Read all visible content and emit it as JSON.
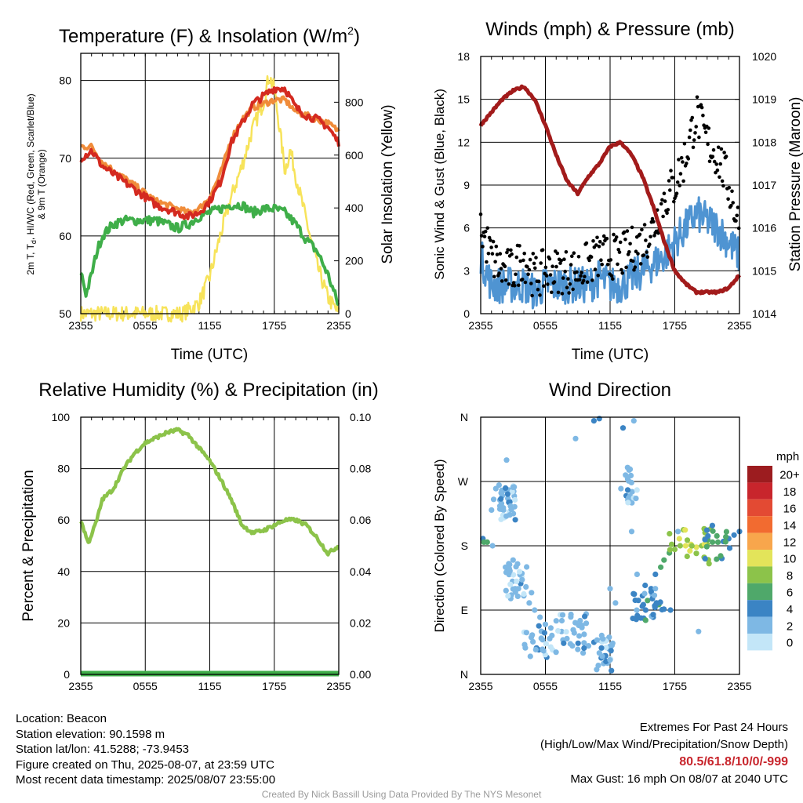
{
  "colors": {
    "red": "#d42a20",
    "orange": "#f08c3a",
    "green": "#3fae49",
    "yellow": "#f7e35a",
    "sonic": "#4f94d2",
    "gust": "#000000",
    "pressure": "#a21b1b",
    "rh": "#8cc34a",
    "precip": "#3fae49"
  },
  "charts": {
    "temp": {
      "title_main": "Temperature (F) & Insolation (W/m",
      "title_sup": "2",
      "title_end": ")",
      "ylabel_line1": "2m T, T",
      "ylabel_sub": "d",
      "ylabel_line1_end": ", HI/WC (Red, Green, Scarlet/Blue)",
      "ylabel_line2": "& 9m T (Orange)",
      "y2label": "Solar Insolation (Yellow)",
      "xlabel": "Time (UTC)"
    },
    "wind": {
      "title": "Winds (mph) & Pressure (mb)",
      "ylabel": "Sonic Wind & Gust (Blue, Black)",
      "y2label": "Station Pressure (Maroon)",
      "xlabel": "Time (UTC)"
    },
    "rh": {
      "title": "Relative Humidity (%) & Precipitation (in)",
      "ylabel": "Percent & Precipitation"
    },
    "dir": {
      "title": "Wind Direction",
      "ylabel": "Direction (Colored By Speed)",
      "legend_title": "mph",
      "legend_labels": [
        "20+",
        "18",
        "16",
        "14",
        "12",
        "10",
        "8",
        "6",
        "4",
        "2",
        "0"
      ],
      "legend_colors": [
        "#9c1c1f",
        "#c8252c",
        "#e34a33",
        "#f26b30",
        "#f8a64c",
        "#e3e45a",
        "#8cc34a",
        "#4fa86a",
        "#3b84c4",
        "#7eb8e4",
        "#c3e6f8"
      ]
    }
  },
  "chart_data": [
    {
      "type": "line",
      "title": "Temperature (F) & Insolation (W/m2)",
      "xlabel": "Time (UTC)",
      "ylabel": "2m T, Td, HI/WC (Red, Green, Scarlet/Blue) & 9m T (Orange)",
      "y2label": "Solar Insolation (Yellow)",
      "x_ticks": [
        "2355",
        "0555",
        "1155",
        "1755",
        "2355"
      ],
      "y_ticks": [
        "50",
        "60",
        "70",
        "80"
      ],
      "y2_ticks": [
        "0",
        "200",
        "400",
        "600",
        "800"
      ],
      "ylim": [
        50,
        83.5
      ],
      "y2lim": [
        0,
        985
      ],
      "x_hours": [
        0,
        24
      ],
      "series": [
        {
          "name": "2m T",
          "axis": "y",
          "color": "#d42a20",
          "x": [
            0,
            1,
            2,
            3,
            4,
            5,
            6,
            7,
            8,
            9,
            10,
            11,
            12,
            13,
            14,
            15,
            16,
            17,
            18,
            19,
            20,
            21,
            22,
            23,
            24
          ],
          "values": [
            70,
            71,
            69,
            68,
            67,
            66,
            65,
            64,
            63.5,
            63,
            62.5,
            63,
            64.5,
            67,
            72,
            74.5,
            77,
            78,
            79,
            79,
            76.5,
            75.5,
            75,
            74,
            72
          ]
        },
        {
          "name": "9m T",
          "axis": "y",
          "color": "#f08c3a",
          "x": [
            0,
            1,
            2,
            3,
            4,
            5,
            6,
            7,
            8,
            9,
            10,
            11,
            12,
            13,
            14,
            15,
            16,
            17,
            18,
            19,
            20,
            21,
            22,
            23,
            24
          ],
          "values": [
            71.5,
            71.5,
            69.5,
            68.5,
            67.5,
            66.5,
            65.5,
            64.5,
            64,
            63.5,
            63,
            63.5,
            65,
            68,
            72.5,
            75,
            76.5,
            77,
            77.5,
            77.5,
            76,
            75.5,
            75,
            74.5,
            73.5
          ]
        },
        {
          "name": "Td",
          "axis": "y",
          "color": "#3fae49",
          "x": [
            0,
            0.5,
            1,
            1.5,
            2,
            3,
            4,
            5,
            6,
            7,
            8,
            9,
            10,
            11,
            12,
            13,
            14,
            15,
            16,
            17,
            18,
            19,
            20,
            21,
            22,
            23,
            24
          ],
          "values": [
            55.5,
            52.5,
            55,
            58,
            60,
            61.5,
            62,
            62,
            62,
            62,
            61.5,
            61,
            61.5,
            62.5,
            63,
            63.5,
            64,
            64,
            63,
            63.5,
            63.5,
            63,
            61.5,
            59.5,
            58,
            55,
            51
          ]
        },
        {
          "name": "Solar Insolation",
          "axis": "y2",
          "color": "#f7e35a",
          "x": [
            0,
            9.5,
            11,
            12,
            13,
            14,
            15,
            16,
            17,
            17.5,
            18,
            18.5,
            19,
            19.5,
            20,
            21,
            22,
            23,
            24
          ],
          "values": [
            0,
            0,
            40,
            140,
            300,
            440,
            560,
            700,
            800,
            900,
            850,
            700,
            540,
            620,
            520,
            350,
            180,
            60,
            0
          ]
        }
      ]
    },
    {
      "type": "line",
      "title": "Winds (mph) & Pressure (mb)",
      "xlabel": "Time (UTC)",
      "ylabel": "Sonic Wind & Gust (Blue, Black)",
      "y2label": "Station Pressure (Maroon)",
      "x_ticks": [
        "2355",
        "0555",
        "1155",
        "1755",
        "2355"
      ],
      "y_ticks": [
        "0",
        "3",
        "6",
        "9",
        "12",
        "15",
        "18"
      ],
      "y2_ticks": [
        "1014",
        "1015",
        "1016",
        "1017",
        "1018",
        "1019",
        "1020"
      ],
      "ylim": [
        0,
        18
      ],
      "y2lim": [
        1014,
        1020
      ],
      "x_hours": [
        0,
        24
      ],
      "series": [
        {
          "name": "Sonic Wind",
          "axis": "y",
          "color": "#4f94d2",
          "x": [
            0,
            1,
            2,
            3,
            4,
            5,
            6,
            7,
            8,
            9,
            10,
            11,
            12,
            13,
            14,
            15,
            16,
            17,
            18,
            19,
            20,
            21,
            22,
            23,
            24
          ],
          "values": [
            4,
            2,
            2,
            2,
            2,
            1.5,
            2,
            2,
            2,
            2,
            2,
            2.5,
            2,
            2,
            2.5,
            3,
            3.5,
            4,
            5,
            6,
            7,
            6.5,
            6,
            5,
            4
          ]
        },
        {
          "name": "Gust",
          "axis": "y",
          "color": "#000000",
          "x": [
            0,
            1,
            2,
            3,
            4,
            5,
            6,
            7,
            8,
            9,
            10,
            11,
            12,
            13,
            14,
            15,
            16,
            17,
            18,
            19,
            20,
            21,
            22,
            23,
            24
          ],
          "values": [
            6,
            4,
            3,
            3,
            4,
            2.5,
            3,
            3,
            3,
            3,
            3.5,
            4,
            4,
            4,
            4.5,
            5,
            6,
            8,
            9,
            11,
            14,
            12,
            11,
            9,
            6
          ]
        },
        {
          "name": "Station Pressure",
          "axis": "y2",
          "color": "#a21b1b",
          "x": [
            0,
            1,
            2,
            3,
            4,
            5,
            6,
            7,
            8,
            9,
            10,
            11,
            12,
            13,
            14,
            15,
            16,
            17,
            18,
            19,
            20,
            21,
            22,
            23,
            24
          ],
          "values": [
            1018.4,
            1018.7,
            1019.0,
            1019.2,
            1019.3,
            1019.0,
            1018.4,
            1017.7,
            1017.1,
            1016.8,
            1017.2,
            1017.5,
            1017.9,
            1018.0,
            1017.7,
            1017.2,
            1016.5,
            1015.7,
            1015.0,
            1014.7,
            1014.5,
            1014.5,
            1014.5,
            1014.6,
            1014.9
          ]
        }
      ]
    },
    {
      "type": "line",
      "title": "Relative Humidity (%) & Precipitation (in)",
      "ylabel": "Percent & Precipitation",
      "x_ticks": [
        "2355",
        "0555",
        "1155",
        "1755",
        "2355"
      ],
      "y_ticks": [
        "0",
        "20",
        "40",
        "60",
        "80",
        "100"
      ],
      "y2_ticks": [
        "0.00",
        "0.02",
        "0.04",
        "0.06",
        "0.08",
        "0.10"
      ],
      "ylim": [
        0,
        100
      ],
      "y2lim": [
        0,
        0.1
      ],
      "x_hours": [
        0,
        24
      ],
      "series": [
        {
          "name": "Relative Humidity",
          "axis": "y",
          "color": "#8cc34a",
          "x": [
            0,
            0.7,
            1.5,
            2,
            3,
            4,
            5,
            6,
            7,
            8,
            9,
            10,
            11,
            12,
            13,
            14,
            15,
            16,
            17,
            18,
            19,
            20,
            21,
            22,
            23,
            24
          ],
          "values": [
            60,
            51,
            60,
            68,
            72,
            80,
            86,
            90,
            92,
            94,
            95,
            93,
            88,
            83,
            76,
            68,
            58,
            55,
            56,
            58,
            60,
            60,
            58,
            53,
            47,
            50
          ]
        },
        {
          "name": "Precipitation",
          "axis": "y2",
          "color": "#3fae49",
          "x": [
            0,
            24
          ],
          "values": [
            0,
            0
          ]
        }
      ]
    },
    {
      "type": "scatter",
      "title": "Wind Direction",
      "ylabel": "Direction (Colored By Speed)",
      "x_ticks": [
        "2355",
        "0555",
        "1155",
        "1755",
        "2355"
      ],
      "y_ticks": [
        "N",
        "E",
        "S",
        "W",
        "N"
      ],
      "ylim": [
        0,
        360
      ],
      "x_hours": [
        0,
        24
      ],
      "legend_title": "mph",
      "legend": [
        "20+",
        "18",
        "16",
        "14",
        "12",
        "10",
        "8",
        "6",
        "4",
        "2",
        "0"
      ],
      "points": [
        [
          0.2,
          190,
          4
        ],
        [
          0.3,
          185,
          6
        ],
        [
          0.6,
          185,
          6
        ],
        [
          1.0,
          230,
          2
        ],
        [
          1.2,
          245,
          2
        ],
        [
          1.4,
          260,
          2
        ],
        [
          1.7,
          265,
          1
        ],
        [
          2.0,
          250,
          2
        ],
        [
          2.3,
          150,
          1
        ],
        [
          2.6,
          155,
          2
        ],
        [
          3.0,
          160,
          1
        ],
        [
          3.5,
          120,
          2
        ],
        [
          4.0,
          110,
          1
        ],
        [
          4.5,
          100,
          2
        ],
        [
          5.0,
          90,
          1
        ],
        [
          5.5,
          80,
          2
        ],
        [
          6.0,
          70,
          2
        ],
        [
          6.5,
          65,
          1
        ],
        [
          7.0,
          75,
          2
        ],
        [
          7.5,
          60,
          2
        ],
        [
          8.0,
          50,
          1
        ],
        [
          8.5,
          40,
          2
        ],
        [
          9.0,
          35,
          2
        ],
        [
          9.5,
          30,
          1
        ],
        [
          10.0,
          40,
          2
        ],
        [
          10.5,
          45,
          3
        ],
        [
          11.0,
          30,
          2
        ],
        [
          11.5,
          25,
          2
        ],
        [
          12.0,
          120,
          2
        ],
        [
          12.5,
          100,
          1
        ],
        [
          13.0,
          260,
          2
        ],
        [
          13.5,
          250,
          3
        ],
        [
          14.0,
          200,
          2
        ],
        [
          14.5,
          140,
          2
        ],
        [
          15.0,
          110,
          4
        ],
        [
          15.3,
          90,
          4
        ],
        [
          15.8,
          120,
          4
        ],
        [
          16.2,
          140,
          4
        ],
        [
          16.7,
          150,
          5
        ],
        [
          17.0,
          160,
          6
        ],
        [
          17.5,
          170,
          6
        ],
        [
          18.0,
          175,
          7
        ],
        [
          18.5,
          180,
          8
        ],
        [
          19.0,
          180,
          9
        ],
        [
          19.5,
          182,
          10
        ],
        [
          20.0,
          178,
          9
        ],
        [
          20.5,
          180,
          8
        ],
        [
          21.0,
          182,
          7
        ],
        [
          21.5,
          185,
          6
        ],
        [
          22.0,
          185,
          5
        ],
        [
          22.5,
          186,
          4
        ],
        [
          23.0,
          190,
          4
        ],
        [
          23.5,
          195,
          3
        ],
        [
          24.0,
          200,
          4
        ],
        [
          1.1,
          180,
          1
        ],
        [
          2.4,
          300,
          1
        ],
        [
          3.2,
          120,
          1
        ],
        [
          6.4,
          50,
          1
        ],
        [
          8.8,
          330,
          1
        ],
        [
          10.5,
          355,
          4
        ],
        [
          11.0,
          358,
          3
        ],
        [
          13.2,
          345,
          3
        ],
        [
          14.2,
          355,
          2
        ],
        [
          16.0,
          80,
          4
        ],
        [
          16.3,
          100,
          4
        ],
        [
          17.6,
          90,
          4
        ],
        [
          18.3,
          200,
          1
        ],
        [
          20.2,
          60,
          2
        ]
      ]
    }
  ],
  "info": {
    "location": "Location: Beacon",
    "elevation": "Station elevation: 90.1598 m",
    "latlon": "Station lat/lon: 41.5288; -73.9453",
    "created": "Figure created on Thu, 2025-08-07, at 23:59 UTC",
    "recent": "Most recent data timestamp: 2025/08/07 23:55:00"
  },
  "extremes": {
    "title": "Extremes For Past 24 Hours",
    "subtitle": "(High/Low/Max Wind/Precipitation/Snow Depth)",
    "values": "80.5/61.8/10/0/-999",
    "gust": "Max Gust: 16 mph On 08/07 at 2040 UTC"
  },
  "credit": "Created By Nick Bassill Using Data Provided By The NYS Mesonet"
}
